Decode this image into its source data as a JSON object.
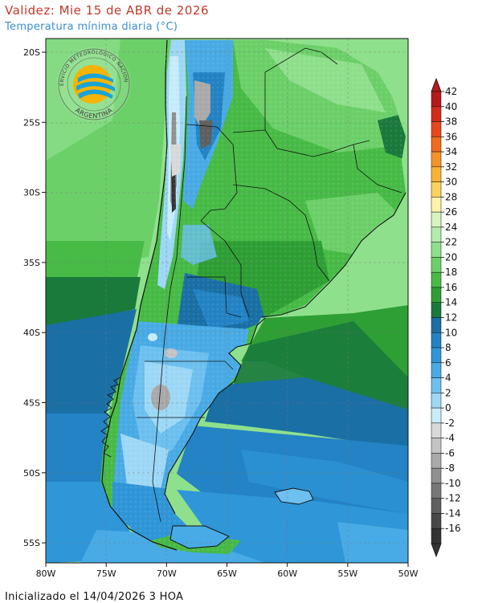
{
  "header": {
    "title": "Validez: Mie 15 de ABR de 2026",
    "subtitle": "Temperatura mínima diaria (°C)"
  },
  "footer": {
    "init_text": "Inicializado el 14/04/2026 3 HOA"
  },
  "logo": {
    "ring_text_top": "SERVICIO METEOROLÓGICO NACIONAL",
    "ring_text_bottom": "ARGENTINA"
  },
  "axes": {
    "lat_labels": [
      "20S",
      "25S",
      "30S",
      "35S",
      "40S",
      "45S",
      "50S",
      "55S"
    ],
    "lon_labels": [
      "80W",
      "75W",
      "70W",
      "65W",
      "60W",
      "55W",
      "50W"
    ]
  },
  "colorbar": {
    "labels": [
      "42",
      "40",
      "38",
      "36",
      "34",
      "32",
      "30",
      "28",
      "26",
      "24",
      "22",
      "20",
      "18",
      "16",
      "14",
      "12",
      "10",
      "8",
      "6",
      "4",
      "2",
      "0",
      "-2",
      "-4",
      "-6",
      "-8",
      "-10",
      "-12",
      "-14",
      "-16"
    ],
    "colors": [
      "#b51a1a",
      "#d42a1c",
      "#e8471c",
      "#f26a1c",
      "#f79227",
      "#fbb234",
      "#fcd25a",
      "#fff3a8",
      "#d7f5c0",
      "#b4ecad",
      "#8fe08c",
      "#6cd069",
      "#47bb46",
      "#2e9f34",
      "#1a7a3c",
      "#1a6fa5",
      "#2383c4",
      "#2f96d8",
      "#49abe5",
      "#6dc0ef",
      "#9dd8f6",
      "#c8ecfb",
      "#d9d9d9",
      "#c4c4c4",
      "#aaaaaa",
      "#909090",
      "#777777",
      "#5f5f5f",
      "#484848",
      "#333333"
    ]
  },
  "map": {
    "variable": "Temperatura mínima diaria",
    "unit": "°C",
    "lon_range": [
      -80,
      -50
    ],
    "lat_range": [
      -56,
      -19
    ]
  }
}
